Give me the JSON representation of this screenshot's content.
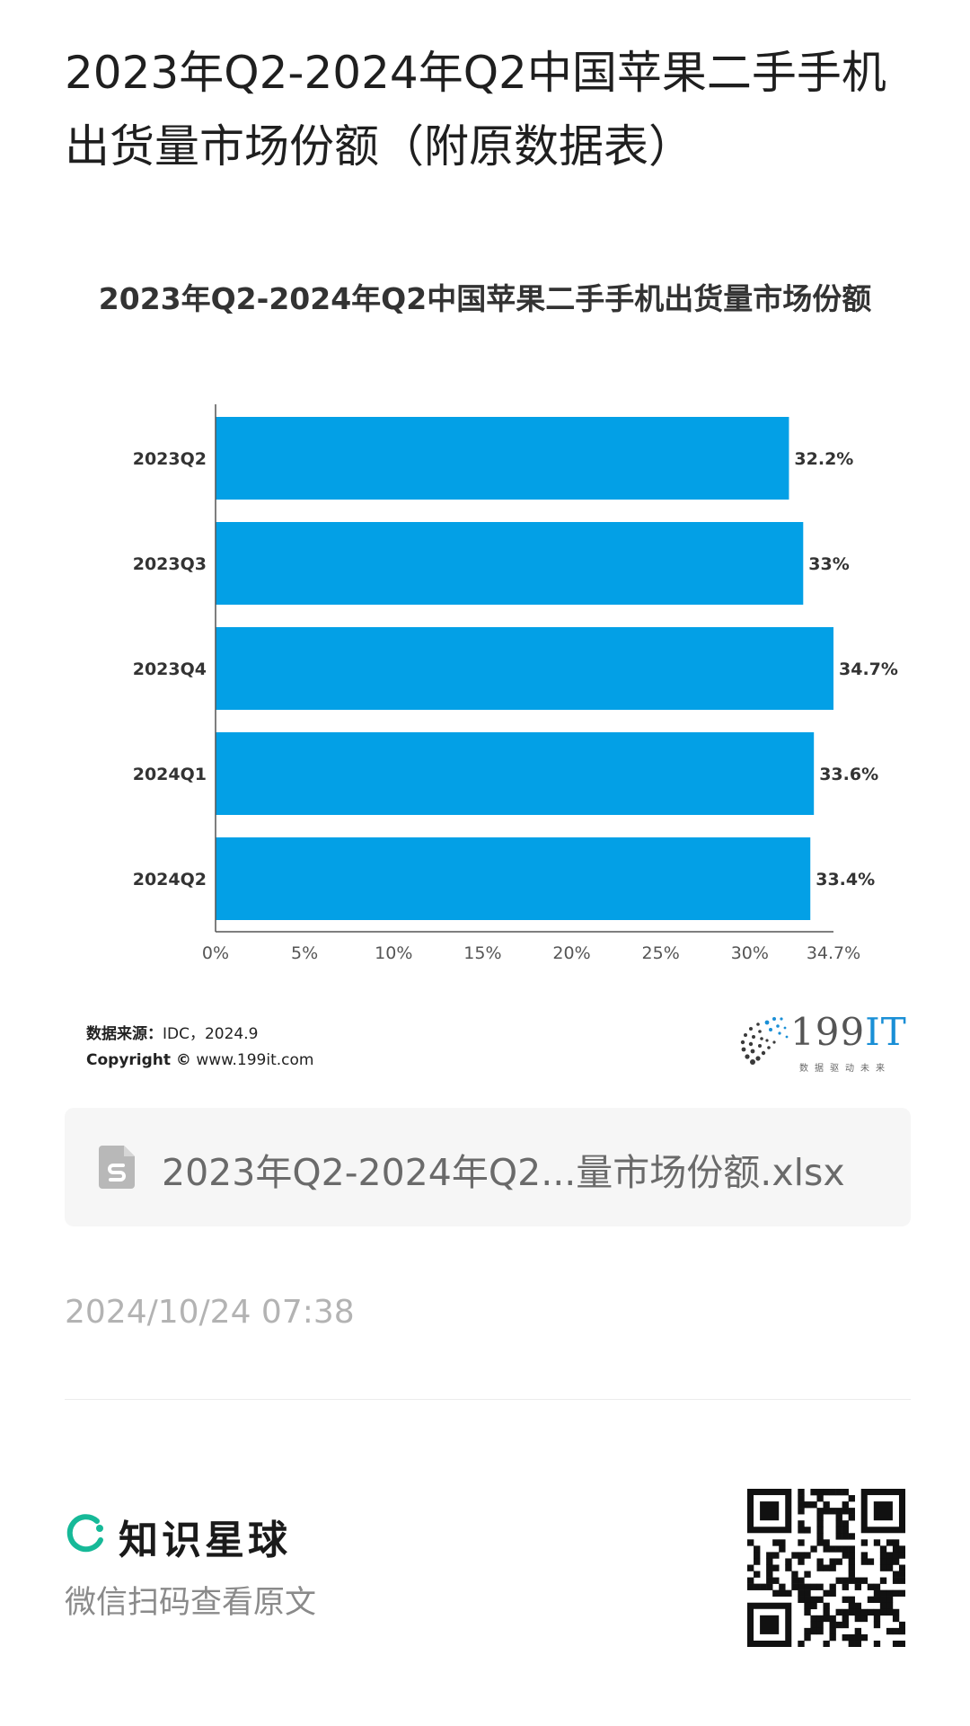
{
  "page": {
    "title": "2023年Q2-2024年Q2中国苹果二手手机出货量市场份额（附原数据表）"
  },
  "chart_data": {
    "type": "bar",
    "orientation": "horizontal",
    "title": "2023年Q2-2024年Q2中国苹果二手手机出货量市场份额",
    "categories": [
      "2023Q2",
      "2023Q3",
      "2023Q4",
      "2024Q1",
      "2024Q2"
    ],
    "values": [
      32.2,
      33,
      34.7,
      33.6,
      33.4
    ],
    "value_labels": [
      "32.2%",
      "33%",
      "34.7%",
      "33.6%",
      "33.4%"
    ],
    "x_ticks": [
      "0%",
      "5%",
      "10%",
      "15%",
      "20%",
      "25%",
      "30%",
      "34.7%"
    ],
    "x_tick_values": [
      0,
      5,
      10,
      15,
      20,
      25,
      30,
      34.7
    ],
    "xlim": [
      0,
      34.7
    ],
    "xlabel": "",
    "ylabel": "",
    "grid": false,
    "bar_color": "#03a0e6"
  },
  "source": {
    "label": "数据来源：",
    "value": "IDC，2024.9",
    "copyright_label": "Copyright ©",
    "copyright_site": "www.199it.com"
  },
  "logo": {
    "text_num": "199",
    "text_it": "IT",
    "tagline": "数据驱动未来"
  },
  "file": {
    "name": "2023年Q2-2024年Q2...量市场份额.xlsx",
    "icon": "spreadsheet-file-icon"
  },
  "timestamp": "2024/10/24 07:38",
  "footer": {
    "brand_name": "知识星球",
    "scan_hint": "微信扫码查看原文",
    "brand_color": "#16b998"
  }
}
